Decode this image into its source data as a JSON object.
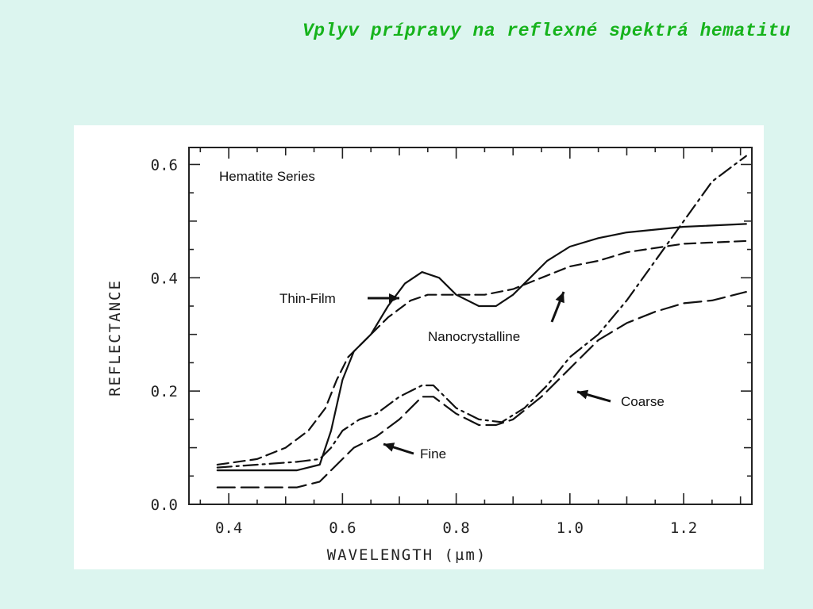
{
  "slide": {
    "title": "Vplyv prípravy na reflexné spektrá hematitu",
    "title_color": "#16b31c"
  },
  "chart_data": {
    "type": "line",
    "title": "Hematite Series",
    "xlabel": "WAVELENGTH  (µm)",
    "ylabel": "REFLECTANCE",
    "xlim": [
      0.33,
      1.32
    ],
    "ylim": [
      0.0,
      0.63
    ],
    "xticks": [
      0.4,
      0.6,
      0.8,
      1.0,
      1.2
    ],
    "xtick_labels": [
      "0.4",
      "0.6",
      "0.8",
      "1.0",
      "1.2"
    ],
    "yticks": [
      0.0,
      0.2,
      0.4,
      0.6
    ],
    "ytick_labels": [
      "0.0",
      "0.2",
      "0.4",
      "0.6"
    ],
    "grid": false,
    "legend": "none (curves labeled with arrows)",
    "series": [
      {
        "name": "Thin-Film",
        "style": "solid",
        "x": [
          0.38,
          0.45,
          0.52,
          0.56,
          0.58,
          0.6,
          0.62,
          0.65,
          0.68,
          0.71,
          0.74,
          0.77,
          0.8,
          0.84,
          0.87,
          0.9,
          0.93,
          0.96,
          1.0,
          1.05,
          1.1,
          1.2,
          1.31
        ],
        "y": [
          0.06,
          0.06,
          0.06,
          0.07,
          0.13,
          0.22,
          0.27,
          0.3,
          0.35,
          0.39,
          0.41,
          0.4,
          0.37,
          0.35,
          0.35,
          0.37,
          0.4,
          0.43,
          0.455,
          0.47,
          0.48,
          0.49,
          0.495
        ]
      },
      {
        "name": "Nanocrystalline",
        "style": "dashed",
        "x": [
          0.38,
          0.45,
          0.5,
          0.54,
          0.57,
          0.59,
          0.61,
          0.64,
          0.68,
          0.72,
          0.75,
          0.8,
          0.85,
          0.9,
          0.95,
          1.0,
          1.05,
          1.1,
          1.2,
          1.31
        ],
        "y": [
          0.07,
          0.08,
          0.1,
          0.13,
          0.17,
          0.22,
          0.26,
          0.29,
          0.33,
          0.36,
          0.37,
          0.37,
          0.37,
          0.38,
          0.4,
          0.42,
          0.43,
          0.445,
          0.46,
          0.465
        ]
      },
      {
        "name": "Fine",
        "style": "dash-dot",
        "x": [
          0.38,
          0.45,
          0.52,
          0.56,
          0.58,
          0.6,
          0.63,
          0.66,
          0.7,
          0.74,
          0.76,
          0.8,
          0.84,
          0.88,
          0.92,
          0.96,
          1.0,
          1.05,
          1.1,
          1.15,
          1.2,
          1.25,
          1.31
        ],
        "y": [
          0.065,
          0.07,
          0.075,
          0.08,
          0.1,
          0.13,
          0.15,
          0.16,
          0.19,
          0.21,
          0.21,
          0.17,
          0.15,
          0.145,
          0.17,
          0.21,
          0.26,
          0.3,
          0.36,
          0.43,
          0.5,
          0.57,
          0.615
        ]
      },
      {
        "name": "Coarse",
        "style": "long-dash",
        "x": [
          0.38,
          0.45,
          0.52,
          0.56,
          0.59,
          0.62,
          0.66,
          0.7,
          0.74,
          0.76,
          0.8,
          0.84,
          0.87,
          0.9,
          0.95,
          1.0,
          1.05,
          1.1,
          1.15,
          1.2,
          1.25,
          1.31
        ],
        "y": [
          0.03,
          0.03,
          0.03,
          0.04,
          0.07,
          0.1,
          0.12,
          0.15,
          0.19,
          0.19,
          0.16,
          0.14,
          0.14,
          0.15,
          0.19,
          0.24,
          0.29,
          0.32,
          0.34,
          0.355,
          0.36,
          0.375
        ]
      }
    ],
    "annotations": [
      {
        "text": "Hematite Series"
      },
      {
        "text": "Thin-Film"
      },
      {
        "text": "Nanocrystalline"
      },
      {
        "text": "Fine"
      },
      {
        "text": "Coarse"
      }
    ]
  }
}
